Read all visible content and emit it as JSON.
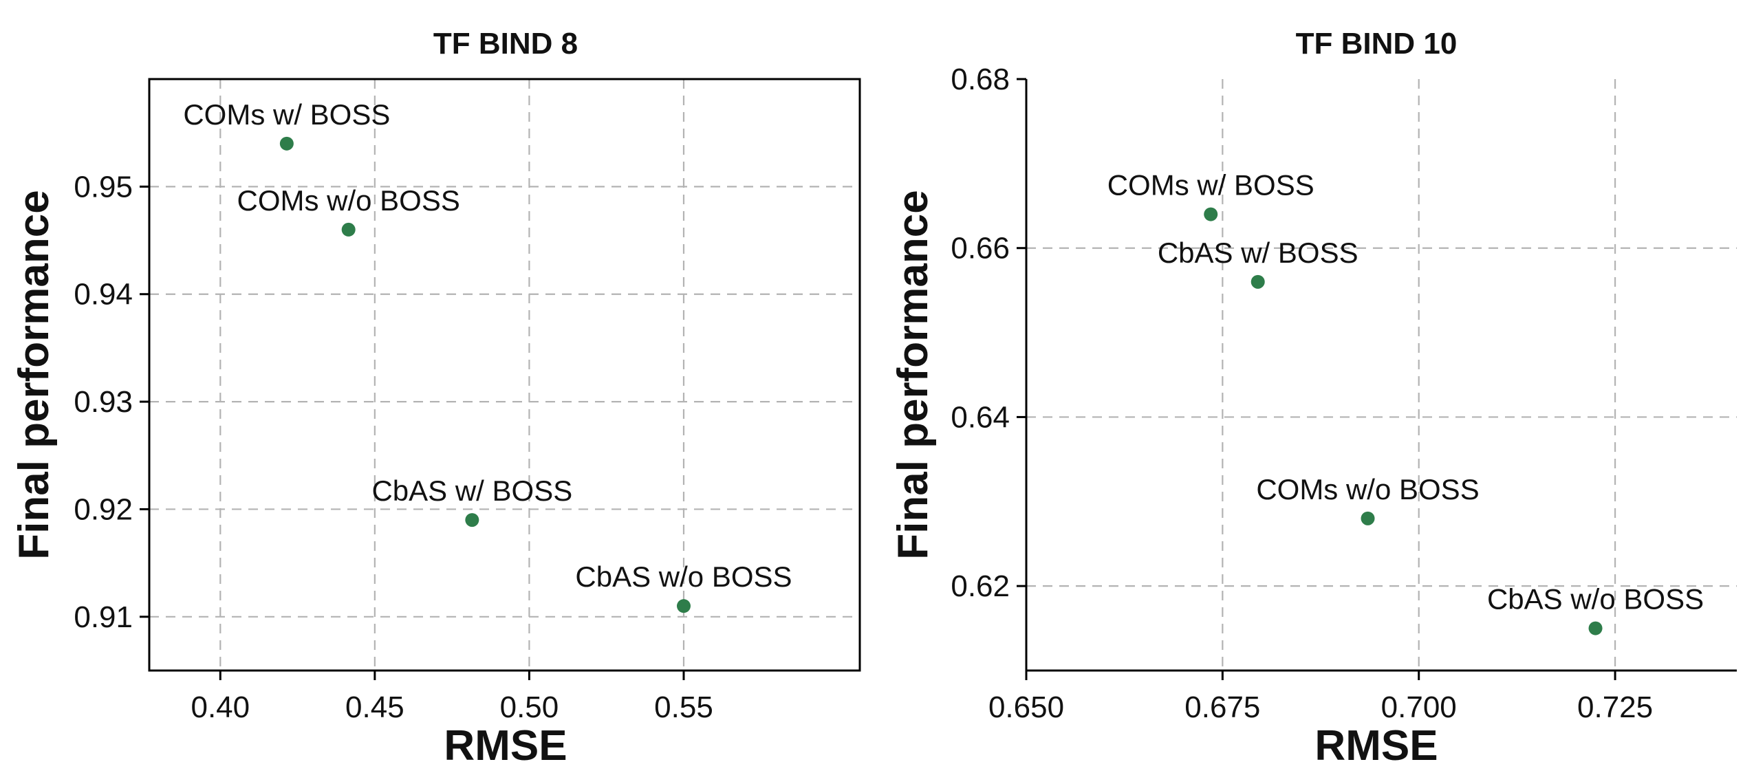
{
  "chart_data": [
    {
      "type": "scatter",
      "title": "TF BIND 8",
      "xlabel": "RMSE",
      "ylabel": "Final performance",
      "xlim": [
        0.377,
        0.607
      ],
      "ylim": [
        0.905,
        0.96
      ],
      "xticks": [
        0.4,
        0.45,
        0.5,
        0.55
      ],
      "xtick_labels": [
        "0.40",
        "0.45",
        "0.50",
        "0.55"
      ],
      "yticks": [
        0.91,
        0.92,
        0.93,
        0.94,
        0.95
      ],
      "ytick_labels": [
        "0.91",
        "0.92",
        "0.93",
        "0.94",
        "0.95"
      ],
      "grid": true,
      "point_color": "#2e7d4a",
      "points": [
        {
          "label": "COMs w/ BOSS",
          "x": 0.4215,
          "y": 0.954
        },
        {
          "label": "COMs w/o BOSS",
          "x": 0.4415,
          "y": 0.946
        },
        {
          "label": "CbAS w/ BOSS",
          "x": 0.4815,
          "y": 0.919
        },
        {
          "label": "CbAS w/o BOSS",
          "x": 0.55,
          "y": 0.911
        }
      ]
    },
    {
      "type": "scatter",
      "title": "TF BIND 10",
      "xlabel": "RMSE",
      "ylabel": "Final performance",
      "xlim": [
        0.65,
        0.7405
      ],
      "ylim": [
        0.61,
        0.68
      ],
      "xticks": [
        0.65,
        0.675,
        0.7,
        0.725
      ],
      "xtick_labels": [
        "0.650",
        "0.675",
        "0.700",
        "0.725"
      ],
      "yticks": [
        0.62,
        0.64,
        0.66,
        0.68
      ],
      "ytick_labels": [
        "0.62",
        "0.64",
        "0.66",
        "0.68"
      ],
      "grid": true,
      "point_color": "#2e7d4a",
      "points": [
        {
          "label": "COMs w/ BOSS",
          "x": 0.6735,
          "y": 0.664
        },
        {
          "label": "CbAS w/ BOSS",
          "x": 0.6795,
          "y": 0.656
        },
        {
          "label": "COMs w/o BOSS",
          "x": 0.6935,
          "y": 0.628
        },
        {
          "label": "CbAS w/o BOSS",
          "x": 0.7225,
          "y": 0.615
        }
      ]
    }
  ]
}
